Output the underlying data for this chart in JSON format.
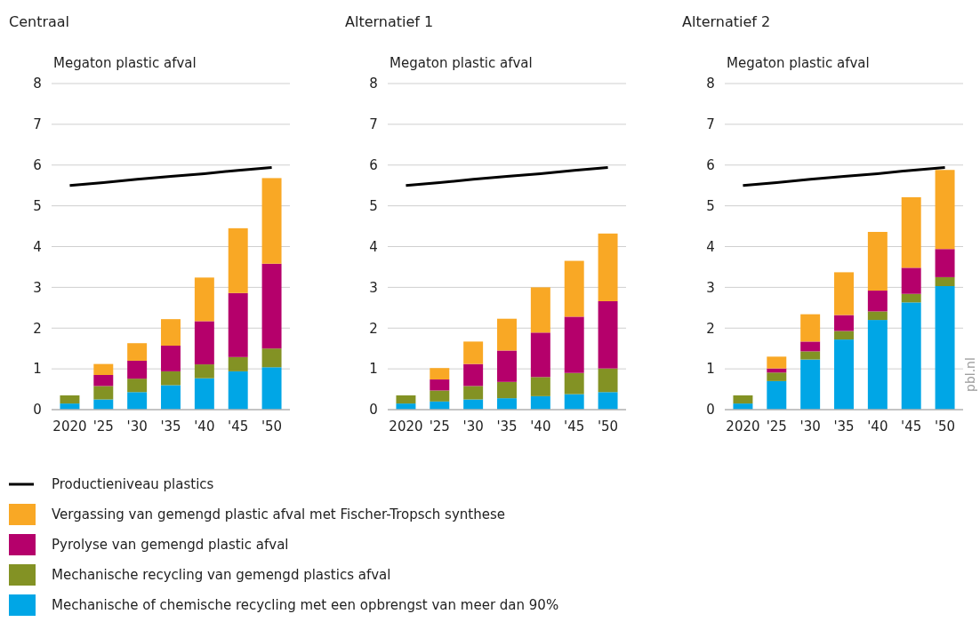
{
  "chart_data": [
    {
      "type": "bar",
      "title": "Centraal",
      "ylabel": "Megaton plastic afval",
      "stacked": true,
      "grid": "y",
      "legend": "bottom",
      "categories": [
        "2020",
        "'25",
        "'30",
        "'35",
        "'40",
        "'45",
        "'50"
      ],
      "ylim": [
        0,
        8
      ],
      "yticks": [
        0,
        1,
        2,
        3,
        4,
        5,
        6,
        7,
        8
      ],
      "series": [
        {
          "name": "Mechanische of chemische recycling met een opbrengst van meer dan 90%",
          "color": "#00a6e6",
          "values": [
            0.15,
            0.25,
            0.43,
            0.6,
            0.77,
            0.94,
            1.04
          ]
        },
        {
          "name": "Mechanische recycling van gemengd plastics afval",
          "color": "#839224",
          "values": [
            0.2,
            0.33,
            0.33,
            0.34,
            0.34,
            0.35,
            0.46
          ]
        },
        {
          "name": "Pyrolyse van gemengd plastic afval",
          "color": "#b5006b",
          "values": [
            0,
            0.27,
            0.44,
            0.63,
            1.06,
            1.57,
            2.08
          ]
        },
        {
          "name": "Vergassing van gemengd plastic afval met Fischer-Tropsch synthese",
          "color": "#f9a825",
          "values": [
            0,
            0.27,
            0.43,
            0.65,
            1.07,
            1.59,
            2.1
          ]
        },
        {
          "name": "Productieniveau plastics",
          "type": "line",
          "color": "#000000",
          "values": [
            5.5,
            5.57,
            5.65,
            5.72,
            5.79,
            5.87,
            5.94
          ]
        }
      ]
    },
    {
      "type": "bar",
      "title": "Alternatief 1",
      "ylabel": "Megaton plastic afval",
      "stacked": true,
      "grid": "y",
      "categories": [
        "2020",
        "'25",
        "'30",
        "'35",
        "'40",
        "'45",
        "'50"
      ],
      "ylim": [
        0,
        8
      ],
      "yticks": [
        0,
        1,
        2,
        3,
        4,
        5,
        6,
        7,
        8
      ],
      "series": [
        {
          "color": "#00a6e6",
          "values": [
            0.15,
            0.2,
            0.25,
            0.28,
            0.33,
            0.38,
            0.43
          ]
        },
        {
          "color": "#839224",
          "values": [
            0.2,
            0.27,
            0.33,
            0.4,
            0.47,
            0.52,
            0.58
          ]
        },
        {
          "color": "#b5006b",
          "values": [
            0,
            0.27,
            0.54,
            0.77,
            1.09,
            1.38,
            1.65
          ]
        },
        {
          "color": "#f9a825",
          "values": [
            0,
            0.28,
            0.55,
            0.78,
            1.11,
            1.37,
            1.66
          ]
        },
        {
          "type": "line",
          "color": "#000000",
          "values": [
            5.5,
            5.57,
            5.65,
            5.72,
            5.79,
            5.87,
            5.94
          ]
        }
      ]
    },
    {
      "type": "bar",
      "title": "Alternatief 2",
      "ylabel": "Megaton plastic afval",
      "stacked": true,
      "grid": "y",
      "categories": [
        "2020",
        "'25",
        "'30",
        "'35",
        "'40",
        "'45",
        "'50"
      ],
      "ylim": [
        0,
        8
      ],
      "yticks": [
        0,
        1,
        2,
        3,
        4,
        5,
        6,
        7,
        8
      ],
      "annotations": [
        "pbl.nl"
      ],
      "series": [
        {
          "color": "#00a6e6",
          "values": [
            0.15,
            0.7,
            1.23,
            1.72,
            2.2,
            2.63,
            3.03
          ]
        },
        {
          "color": "#839224",
          "values": [
            0.2,
            0.21,
            0.2,
            0.21,
            0.21,
            0.21,
            0.22
          ]
        },
        {
          "color": "#b5006b",
          "values": [
            0,
            0.1,
            0.24,
            0.39,
            0.51,
            0.64,
            0.69
          ]
        },
        {
          "color": "#f9a825",
          "values": [
            0,
            0.29,
            0.67,
            1.05,
            1.44,
            1.73,
            1.94
          ]
        },
        {
          "type": "line",
          "color": "#000000",
          "values": [
            5.5,
            5.57,
            5.65,
            5.72,
            5.79,
            5.87,
            5.94
          ]
        }
      ]
    }
  ]
}
